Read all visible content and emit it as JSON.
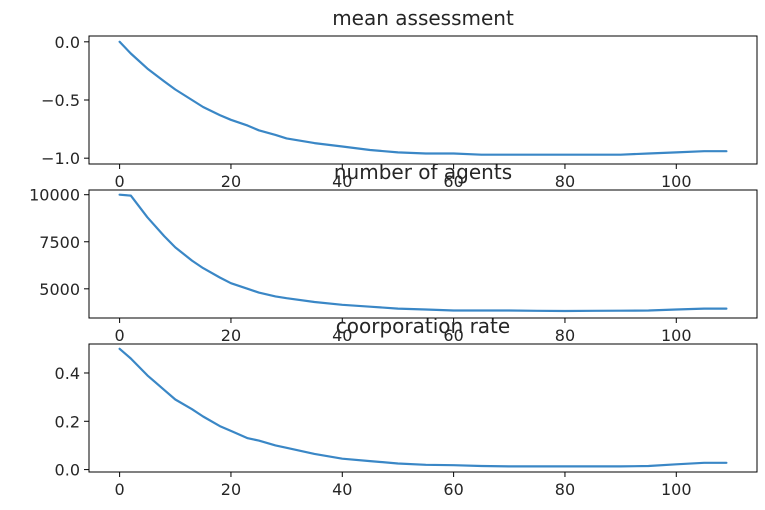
{
  "chart_data": [
    {
      "type": "line",
      "title": "mean assessment",
      "xlabel": "",
      "ylabel": "",
      "xlim": [
        -5.5,
        114.5
      ],
      "ylim": [
        -1.05,
        0.05
      ],
      "xticks": [
        0,
        20,
        40,
        60,
        80,
        100
      ],
      "yticks": [
        0.0,
        -0.5,
        -1.0
      ],
      "ytick_labels": [
        "0.0",
        "−0.5",
        "−1.0"
      ],
      "series": [
        {
          "color": "#3a87c6",
          "x": [
            0,
            2,
            5,
            8,
            10,
            13,
            15,
            18,
            20,
            23,
            25,
            28,
            30,
            35,
            40,
            45,
            50,
            55,
            60,
            65,
            70,
            75,
            80,
            85,
            90,
            95,
            100,
            105,
            109
          ],
          "y": [
            0.0,
            -0.1,
            -0.23,
            -0.34,
            -0.41,
            -0.5,
            -0.56,
            -0.63,
            -0.67,
            -0.72,
            -0.76,
            -0.8,
            -0.83,
            -0.87,
            -0.9,
            -0.93,
            -0.95,
            -0.96,
            -0.96,
            -0.97,
            -0.97,
            -0.97,
            -0.97,
            -0.97,
            -0.97,
            -0.96,
            -0.95,
            -0.94,
            -0.94
          ]
        }
      ]
    },
    {
      "type": "line",
      "title": "number of agents",
      "xlabel": "",
      "ylabel": "",
      "xlim": [
        -5.5,
        114.5
      ],
      "ylim": [
        3450,
        10250
      ],
      "xticks": [
        0,
        20,
        40,
        60,
        80,
        100
      ],
      "yticks": [
        10000,
        7500,
        5000
      ],
      "ytick_labels": [
        "10000",
        "7500",
        "5000"
      ],
      "series": [
        {
          "color": "#3a87c6",
          "x": [
            0,
            2,
            5,
            8,
            10,
            13,
            15,
            18,
            20,
            23,
            25,
            28,
            30,
            35,
            40,
            45,
            50,
            55,
            60,
            65,
            70,
            75,
            80,
            85,
            90,
            95,
            100,
            105,
            109
          ],
          "y": [
            10000,
            9950,
            8800,
            7800,
            7200,
            6500,
            6100,
            5600,
            5300,
            5000,
            4800,
            4600,
            4500,
            4300,
            4150,
            4050,
            3950,
            3900,
            3850,
            3850,
            3850,
            3830,
            3820,
            3830,
            3840,
            3850,
            3900,
            3950,
            3950
          ]
        }
      ]
    },
    {
      "type": "line",
      "title": "coorporation rate",
      "xlabel": "",
      "ylabel": "",
      "xlim": [
        -5.5,
        114.5
      ],
      "ylim": [
        -0.01,
        0.52
      ],
      "xticks": [
        0,
        20,
        40,
        60,
        80,
        100
      ],
      "yticks": [
        0.4,
        0.2,
        0.0
      ],
      "ytick_labels": [
        "0.4",
        "0.2",
        "0.0"
      ],
      "series": [
        {
          "color": "#3a87c6",
          "x": [
            0,
            2,
            5,
            8,
            10,
            13,
            15,
            18,
            20,
            23,
            25,
            28,
            30,
            35,
            40,
            45,
            50,
            55,
            60,
            65,
            70,
            75,
            80,
            85,
            90,
            95,
            100,
            105,
            109
          ],
          "y": [
            0.5,
            0.46,
            0.39,
            0.33,
            0.29,
            0.25,
            0.22,
            0.18,
            0.16,
            0.13,
            0.12,
            0.1,
            0.09,
            0.065,
            0.045,
            0.035,
            0.025,
            0.02,
            0.018,
            0.015,
            0.013,
            0.013,
            0.013,
            0.013,
            0.013,
            0.015,
            0.022,
            0.028,
            0.028
          ]
        }
      ]
    }
  ]
}
